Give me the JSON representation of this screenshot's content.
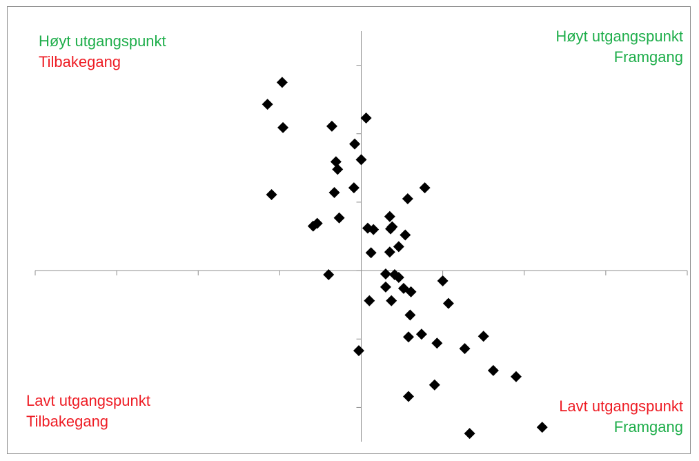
{
  "colors": {
    "green": "#1fae4b",
    "red": "#ee1c24",
    "marker": "#000000",
    "axis": "#8c8c8c"
  },
  "quadrants": {
    "top_left": {
      "line1": {
        "text": "Høyt utgangspunkt",
        "color": "green"
      },
      "line2": {
        "text": "Tilbakegang",
        "color": "red"
      }
    },
    "top_right": {
      "line1": {
        "text": "Høyt utgangspunkt",
        "color": "green"
      },
      "line2": {
        "text": "Framgang",
        "color": "green"
      }
    },
    "bottom_left": {
      "line1": {
        "text": "Lavt utgangspunkt",
        "color": "red"
      },
      "line2": {
        "text": "Tilbakegang",
        "color": "red"
      }
    },
    "bottom_right": {
      "line1": {
        "text": "Lavt utgangspunkt",
        "color": "red"
      },
      "line2": {
        "text": "Framgang",
        "color": "green"
      }
    }
  },
  "chart_data": {
    "type": "scatter",
    "marker": "diamond",
    "x_ticks": [
      -4,
      -3,
      -2,
      -1,
      0,
      1,
      2,
      3,
      4
    ],
    "y_ticks": [
      -2,
      -1,
      0,
      1,
      2,
      3
    ],
    "xlim": [
      -4,
      4
    ],
    "ylim": [
      -2.5,
      3.5
    ],
    "grid": false,
    "points": [
      [
        -0.97,
        2.75
      ],
      [
        -1.15,
        2.43
      ],
      [
        -0.96,
        2.09
      ],
      [
        -0.36,
        2.11
      ],
      [
        0.06,
        2.23
      ],
      [
        -0.08,
        1.85
      ],
      [
        -0.31,
        1.59
      ],
      [
        -0.29,
        1.48
      ],
      [
        0.0,
        1.62
      ],
      [
        -0.09,
        1.21
      ],
      [
        -1.1,
        1.11
      ],
      [
        -0.33,
        1.14
      ],
      [
        0.78,
        1.21
      ],
      [
        0.57,
        1.05
      ],
      [
        -0.54,
        0.69
      ],
      [
        -0.59,
        0.65
      ],
      [
        -0.27,
        0.77
      ],
      [
        0.08,
        0.62
      ],
      [
        0.15,
        0.6
      ],
      [
        0.36,
        0.61
      ],
      [
        0.38,
        0.64
      ],
      [
        0.35,
        0.79
      ],
      [
        0.54,
        0.52
      ],
      [
        0.46,
        0.35
      ],
      [
        0.35,
        0.27
      ],
      [
        0.12,
        0.26
      ],
      [
        -0.4,
        -0.06
      ],
      [
        0.3,
        -0.05
      ],
      [
        0.41,
        -0.06
      ],
      [
        0.46,
        -0.1
      ],
      [
        0.3,
        -0.24
      ],
      [
        0.52,
        -0.26
      ],
      [
        0.61,
        -0.31
      ],
      [
        1.0,
        -0.15
      ],
      [
        0.1,
        -0.44
      ],
      [
        0.37,
        -0.44
      ],
      [
        1.07,
        -0.48
      ],
      [
        0.6,
        -0.65
      ],
      [
        0.74,
        -0.93
      ],
      [
        0.58,
        -0.97
      ],
      [
        0.93,
        -1.06
      ],
      [
        1.5,
        -0.96
      ],
      [
        1.27,
        -1.14
      ],
      [
        -0.03,
        -1.17
      ],
      [
        1.62,
        -1.46
      ],
      [
        1.9,
        -1.55
      ],
      [
        0.9,
        -1.67
      ],
      [
        0.58,
        -1.84
      ],
      [
        2.22,
        -2.29
      ],
      [
        1.33,
        -2.38
      ]
    ]
  }
}
